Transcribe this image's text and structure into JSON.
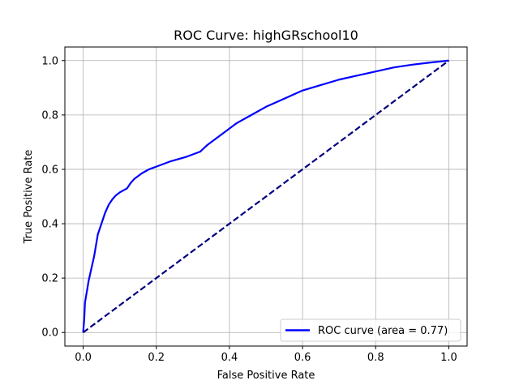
{
  "chart_data": {
    "type": "line",
    "title": "ROC Curve: highGRschool10",
    "xlabel": "False Positive Rate",
    "ylabel": "True Positive Rate",
    "xlim": [
      -0.05,
      1.05
    ],
    "ylim": [
      -0.05,
      1.05
    ],
    "xticks": [
      0.0,
      0.2,
      0.4,
      0.6,
      0.8,
      1.0
    ],
    "yticks": [
      0.0,
      0.2,
      0.4,
      0.6,
      0.8,
      1.0
    ],
    "xtick_labels": [
      "0.0",
      "0.2",
      "0.4",
      "0.6",
      "0.8",
      "1.0"
    ],
    "ytick_labels": [
      "0.0",
      "0.2",
      "0.4",
      "0.6",
      "0.8",
      "1.0"
    ],
    "grid": true,
    "legend_position": "lower-right",
    "series": [
      {
        "name": "ROC curve (area = 0.77)",
        "color": "#0000ff",
        "style": "solid",
        "x": [
          0.0,
          0.003,
          0.005,
          0.01,
          0.015,
          0.02,
          0.025,
          0.03,
          0.035,
          0.04,
          0.05,
          0.06,
          0.07,
          0.08,
          0.09,
          0.1,
          0.12,
          0.13,
          0.14,
          0.16,
          0.18,
          0.2,
          0.24,
          0.28,
          0.32,
          0.34,
          0.38,
          0.42,
          0.46,
          0.5,
          0.55,
          0.6,
          0.65,
          0.7,
          0.75,
          0.8,
          0.85,
          0.9,
          0.95,
          1.0
        ],
        "y": [
          0.0,
          0.05,
          0.11,
          0.15,
          0.19,
          0.22,
          0.25,
          0.28,
          0.32,
          0.36,
          0.4,
          0.44,
          0.47,
          0.49,
          0.505,
          0.515,
          0.53,
          0.55,
          0.565,
          0.585,
          0.6,
          0.61,
          0.63,
          0.645,
          0.665,
          0.69,
          0.73,
          0.77,
          0.8,
          0.83,
          0.86,
          0.89,
          0.91,
          0.93,
          0.945,
          0.96,
          0.975,
          0.985,
          0.993,
          1.0
        ]
      },
      {
        "name": "",
        "color": "#000080",
        "style": "dashed",
        "x": [
          0.0,
          1.0
        ],
        "y": [
          0.0,
          1.0
        ]
      }
    ]
  }
}
